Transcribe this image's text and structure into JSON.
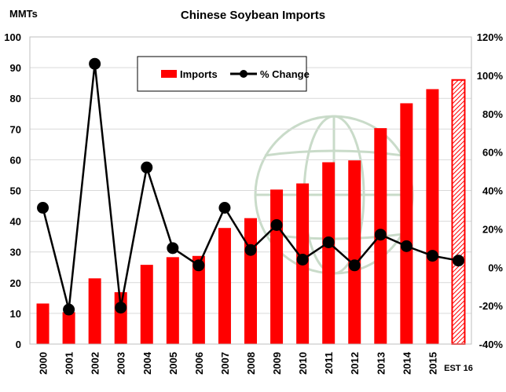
{
  "chart_data": {
    "type": "bar",
    "title": "Chinese Soybean Imports",
    "ylabel_left": "MMTs",
    "categories": [
      "2000",
      "2001",
      "2002",
      "2003",
      "2004",
      "2005",
      "2006",
      "2007",
      "2008",
      "2009",
      "2010",
      "2011",
      "2012",
      "2013",
      "2014",
      "2015",
      "EST 16"
    ],
    "series": [
      {
        "name": "Imports",
        "kind": "bar",
        "axis": "left",
        "color": "#ff0000",
        "values": [
          13.2,
          10.4,
          21.4,
          16.9,
          25.8,
          28.3,
          28.7,
          37.8,
          41.0,
          50.3,
          52.3,
          59.2,
          59.8,
          70.3,
          78.4,
          83.0,
          86.0
        ],
        "estimated_last": true
      },
      {
        "name": "% Change",
        "kind": "line",
        "axis": "right",
        "color": "#000000",
        "values": [
          31,
          -22,
          106,
          -21,
          52,
          10,
          1,
          31,
          9,
          22,
          4,
          13,
          1,
          17,
          11,
          6,
          3.5
        ]
      }
    ],
    "y_left": {
      "min": 0,
      "max": 100,
      "step": 10,
      "ticks": [
        "0",
        "10",
        "20",
        "30",
        "40",
        "50",
        "60",
        "70",
        "80",
        "90",
        "100"
      ]
    },
    "y_right": {
      "min": -40,
      "max": 120,
      "step": 20,
      "ticks": [
        "-40%",
        "-20%",
        "0%",
        "20%",
        "40%",
        "60%",
        "80%",
        "100%",
        "120%"
      ]
    },
    "grid": true,
    "legend": {
      "position": "top-center",
      "items": [
        "Imports",
        "% Change"
      ]
    }
  }
}
